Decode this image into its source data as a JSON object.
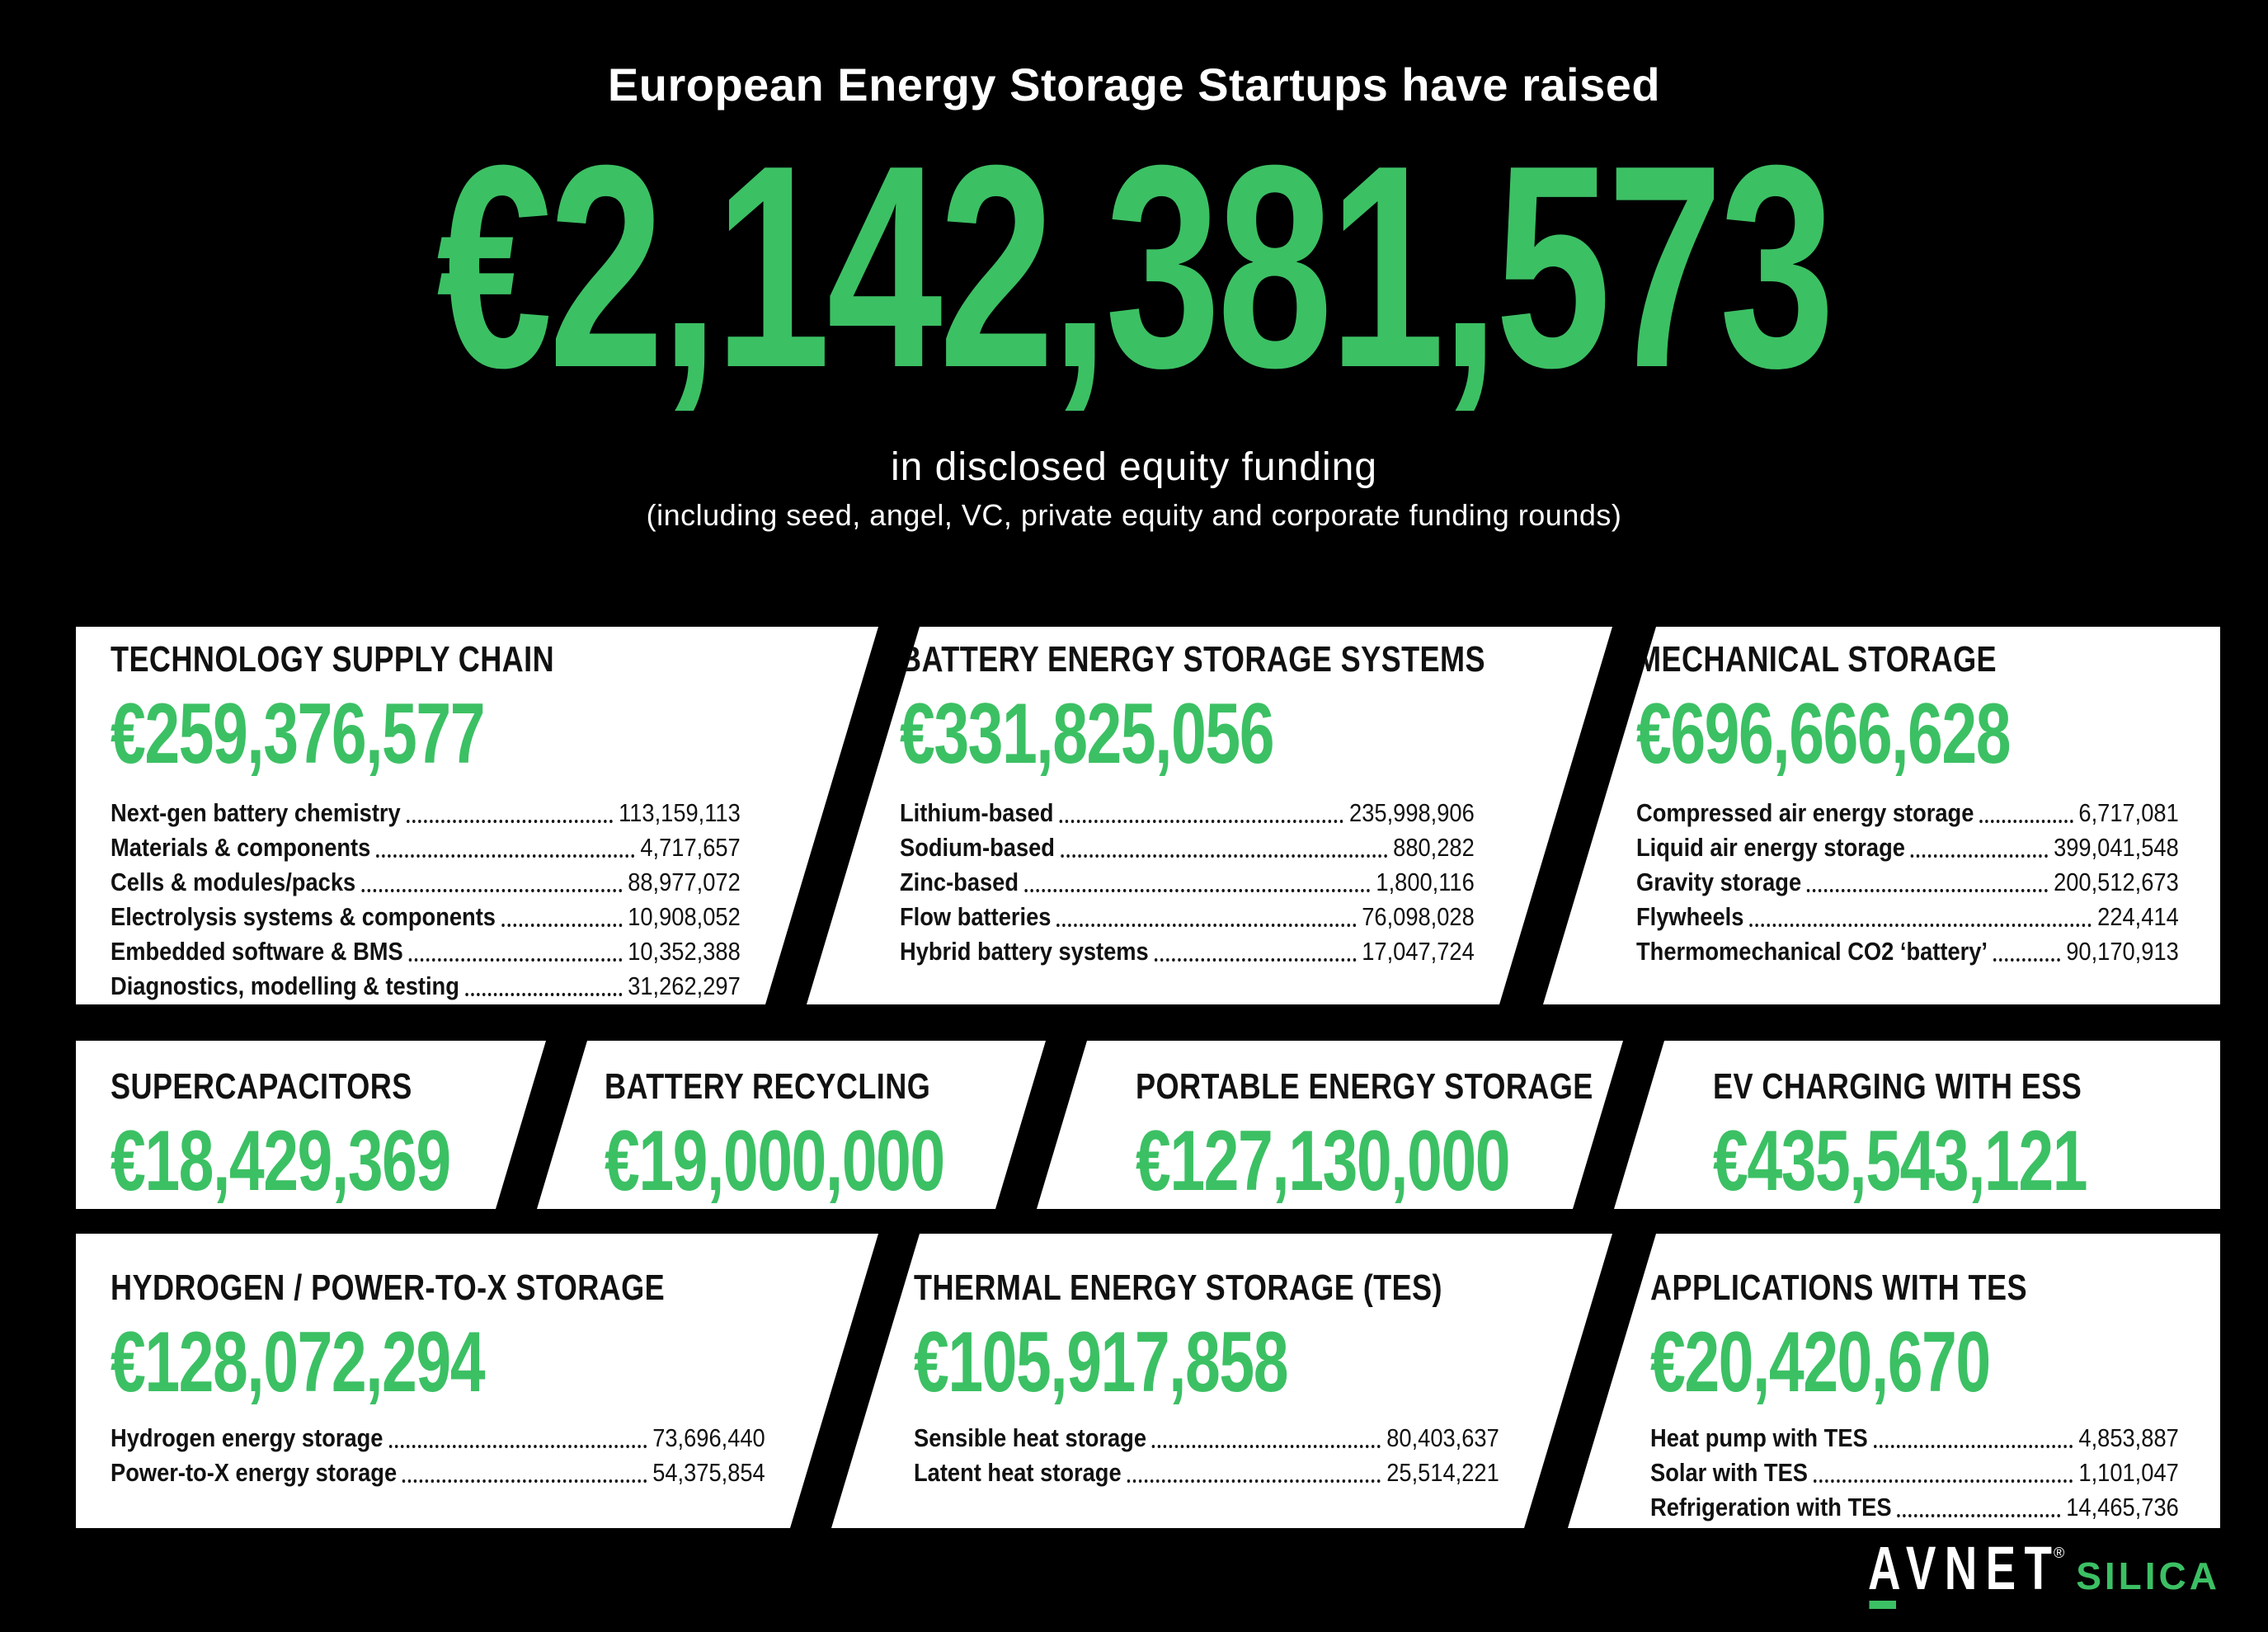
{
  "colors": {
    "background": "#000000",
    "accent_green": "#3CC064",
    "card_background": "#FFFFFF",
    "card_text": "#111111"
  },
  "header": {
    "title": "European Energy Storage Startups have raised",
    "total": "€2,142,381,573",
    "subtitle": "in disclosed equity funding",
    "note": "(including seed, angel, VC, private equity and corporate funding rounds)"
  },
  "rows": [
    {
      "cards": [
        {
          "title": "TECHNOLOGY SUPPLY CHAIN",
          "amount": "€259,376,577",
          "items": [
            {
              "label": "Next-gen battery chemistry",
              "value": "113,159,113"
            },
            {
              "label": "Materials & components",
              "value": "4,717,657"
            },
            {
              "label": "Cells & modules/packs",
              "value": "88,977,072"
            },
            {
              "label": "Electrolysis systems & components",
              "value": "10,908,052"
            },
            {
              "label": "Embedded software & BMS",
              "value": "10,352,388"
            },
            {
              "label": "Diagnostics, modelling & testing",
              "value": "31,262,297"
            }
          ]
        },
        {
          "title": "BATTERY ENERGY STORAGE SYSTEMS",
          "amount": "€331,825,056",
          "items": [
            {
              "label": "Lithium-based",
              "value": "235,998,906"
            },
            {
              "label": "Sodium-based",
              "value": "880,282"
            },
            {
              "label": "Zinc-based",
              "value": "1,800,116"
            },
            {
              "label": "Flow batteries",
              "value": "76,098,028"
            },
            {
              "label": "Hybrid battery systems",
              "value": "17,047,724"
            }
          ]
        },
        {
          "title": "MECHANICAL STORAGE",
          "amount": "€696,666,628",
          "items": [
            {
              "label": "Compressed air energy storage",
              "value": "6,717,081"
            },
            {
              "label": "Liquid air energy storage",
              "value": "399,041,548"
            },
            {
              "label": "Gravity storage",
              "value": "200,512,673"
            },
            {
              "label": "Flywheels",
              "value": "224,414"
            },
            {
              "label": "Thermomechanical CO2 ‘battery’",
              "value": "90,170,913"
            }
          ]
        }
      ]
    },
    {
      "cards": [
        {
          "title": "SUPERCAPACITORS",
          "amount": "€18,429,369"
        },
        {
          "title": "BATTERY RECYCLING",
          "amount": "€19,000,000"
        },
        {
          "title": "PORTABLE ENERGY STORAGE",
          "amount": "€127,130,000"
        },
        {
          "title": "EV CHARGING WITH ESS",
          "amount": "€435,543,121"
        }
      ]
    },
    {
      "cards": [
        {
          "title": "HYDROGEN / POWER-TO-X STORAGE",
          "amount": "€128,072,294",
          "items": [
            {
              "label": "Hydrogen energy storage",
              "value": "73,696,440"
            },
            {
              "label": "Power-to-X energy storage",
              "value": "54,375,854"
            }
          ]
        },
        {
          "title": "THERMAL ENERGY STORAGE (TES)",
          "amount": "€105,917,858",
          "items": [
            {
              "label": "Sensible heat storage",
              "value": "80,403,637"
            },
            {
              "label": "Latent heat storage",
              "value": "25,514,221"
            }
          ]
        },
        {
          "title": "APPLICATIONS WITH TES",
          "amount": "€20,420,670",
          "items": [
            {
              "label": "Heat pump with TES",
              "value": "4,853,887"
            },
            {
              "label": "Solar with TES",
              "value": "1,101,047"
            },
            {
              "label": "Refrigeration with TES",
              "value": "14,465,736"
            }
          ]
        }
      ]
    }
  ],
  "footer": {
    "logo_primary": "AVNET",
    "logo_registered": "®",
    "logo_secondary": "SILICA"
  },
  "chart_data": {
    "type": "table",
    "title": "European Energy Storage Startups have raised",
    "total_eur": 2142381573,
    "funding_note": "in disclosed equity funding (including seed, angel, VC, private equity and corporate funding rounds)",
    "categories": [
      {
        "name": "Technology supply chain",
        "total_eur": 259376577,
        "breakdown": [
          {
            "name": "Next-gen battery chemistry",
            "eur": 113159113
          },
          {
            "name": "Materials & components",
            "eur": 4717657
          },
          {
            "name": "Cells & modules/packs",
            "eur": 88977072
          },
          {
            "name": "Electrolysis systems & components",
            "eur": 10908052
          },
          {
            "name": "Embedded software & BMS",
            "eur": 10352388
          },
          {
            "name": "Diagnostics, modelling & testing",
            "eur": 31262297
          }
        ]
      },
      {
        "name": "Battery energy storage systems",
        "total_eur": 331825056,
        "breakdown": [
          {
            "name": "Lithium-based",
            "eur": 235998906
          },
          {
            "name": "Sodium-based",
            "eur": 880282
          },
          {
            "name": "Zinc-based",
            "eur": 1800116
          },
          {
            "name": "Flow batteries",
            "eur": 76098028
          },
          {
            "name": "Hybrid battery systems",
            "eur": 17047724
          }
        ]
      },
      {
        "name": "Mechanical storage",
        "total_eur": 696666628,
        "breakdown": [
          {
            "name": "Compressed air energy storage",
            "eur": 6717081
          },
          {
            "name": "Liquid air energy storage",
            "eur": 399041548
          },
          {
            "name": "Gravity storage",
            "eur": 200512673
          },
          {
            "name": "Flywheels",
            "eur": 224414
          },
          {
            "name": "Thermomechanical CO2 battery",
            "eur": 90170913
          }
        ]
      },
      {
        "name": "Supercapacitors",
        "total_eur": 18429369,
        "breakdown": []
      },
      {
        "name": "Battery recycling",
        "total_eur": 19000000,
        "breakdown": []
      },
      {
        "name": "Portable energy storage",
        "total_eur": 127130000,
        "breakdown": []
      },
      {
        "name": "EV charging with ESS",
        "total_eur": 435543121,
        "breakdown": []
      },
      {
        "name": "Hydrogen / Power-to-X storage",
        "total_eur": 128072294,
        "breakdown": [
          {
            "name": "Hydrogen energy storage",
            "eur": 73696440
          },
          {
            "name": "Power-to-X energy storage",
            "eur": 54375854
          }
        ]
      },
      {
        "name": "Thermal energy storage (TES)",
        "total_eur": 105917858,
        "breakdown": [
          {
            "name": "Sensible heat storage",
            "eur": 80403637
          },
          {
            "name": "Latent heat storage",
            "eur": 25514221
          }
        ]
      },
      {
        "name": "Applications with TES",
        "total_eur": 20420670,
        "breakdown": [
          {
            "name": "Heat pump with TES",
            "eur": 4853887
          },
          {
            "name": "Solar with TES",
            "eur": 1101047
          },
          {
            "name": "Refrigeration with TES",
            "eur": 14465736
          }
        ]
      }
    ]
  }
}
